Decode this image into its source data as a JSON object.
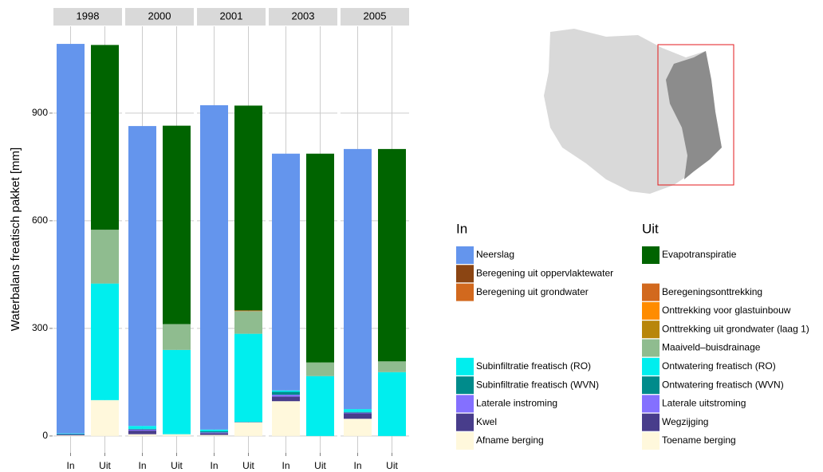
{
  "chart_data": {
    "type": "bar",
    "stacked": true,
    "ylabel": "Waterbalans freatisch pakket [mm]",
    "ylim": [
      -47,
      1142
    ],
    "yticks": [
      0,
      300,
      600,
      900
    ],
    "facets": [
      "1998",
      "2000",
      "2001",
      "2003",
      "2005"
    ],
    "categories": [
      "In",
      "Uit"
    ],
    "groups": [
      {
        "title": "In",
        "series": [
          {
            "name": "Neerslag",
            "color": "#6495ED",
            "values": [
              1086,
              836,
              904,
              660,
              725
            ]
          },
          {
            "name": "Beregening uit oppervlaktewater",
            "color": "#8B4513",
            "values": [
              0,
              0,
              0,
              0,
              0
            ]
          },
          {
            "name": "Beregening uit grondwater",
            "color": "#D2691E",
            "values": [
              0,
              0,
              0,
              0,
              0
            ]
          },
          {
            "name": "Subinfiltratie freatisch (RO)",
            "color": "#00EEEE",
            "values": [
              2,
              8,
              5,
              4,
              8
            ]
          },
          {
            "name": "Subinfiltratie freatisch (WVN)",
            "color": "#008B8B",
            "values": [
              0,
              2,
              3,
              8,
              2
            ]
          },
          {
            "name": "Laterale instroming",
            "color": "#8470FF",
            "values": [
              0,
              3,
              2,
              5,
              2
            ]
          },
          {
            "name": "Kwel",
            "color": "#483D8B",
            "values": [
              3,
              10,
              5,
              13,
              15
            ]
          },
          {
            "name": "Afname berging",
            "color": "#FFF8DC",
            "values": [
              2,
              5,
              3,
              97,
              48
            ]
          }
        ]
      },
      {
        "title": "Uit",
        "series": [
          {
            "name": "Evapotranspiratie",
            "color": "#006400",
            "values": [
              515,
              553,
              571,
              582,
              592
            ]
          },
          {
            "name": "Beregeningsonttrekking",
            "color": "#D2691E",
            "values": [
              0,
              0,
              2,
              0,
              0
            ]
          },
          {
            "name": "Onttrekking voor glastuinbouw",
            "color": "#FF8C00",
            "values": [
              0,
              0,
              0,
              0,
              0
            ]
          },
          {
            "name": "Onttrekking uit grondwater (laag 1)",
            "color": "#B8860B",
            "values": [
              0,
              0,
              0,
              0,
              0
            ]
          },
          {
            "name": "Maaiveld–buisdrainage",
            "color": "#8FBC8F",
            "values": [
              150,
              72,
              63,
              38,
              30
            ]
          },
          {
            "name": "Ontwatering freatisch (RO)",
            "color": "#00EEEE",
            "values": [
              325,
              235,
              246,
              167,
              178
            ]
          },
          {
            "name": "Ontwatering freatisch (WVN)",
            "color": "#008B8B",
            "values": [
              0,
              0,
              0,
              0,
              0
            ]
          },
          {
            "name": "Laterale uitstroming",
            "color": "#8470FF",
            "values": [
              0,
              0,
              0,
              0,
              0
            ]
          },
          {
            "name": "Wegzijging",
            "color": "#483D8B",
            "values": [
              0,
              0,
              1,
              0,
              0
            ]
          },
          {
            "name": "Toename berging",
            "color": "#FFF8DC",
            "values": [
              100,
              5,
              38,
              0,
              0
            ]
          }
        ]
      }
    ]
  }
}
